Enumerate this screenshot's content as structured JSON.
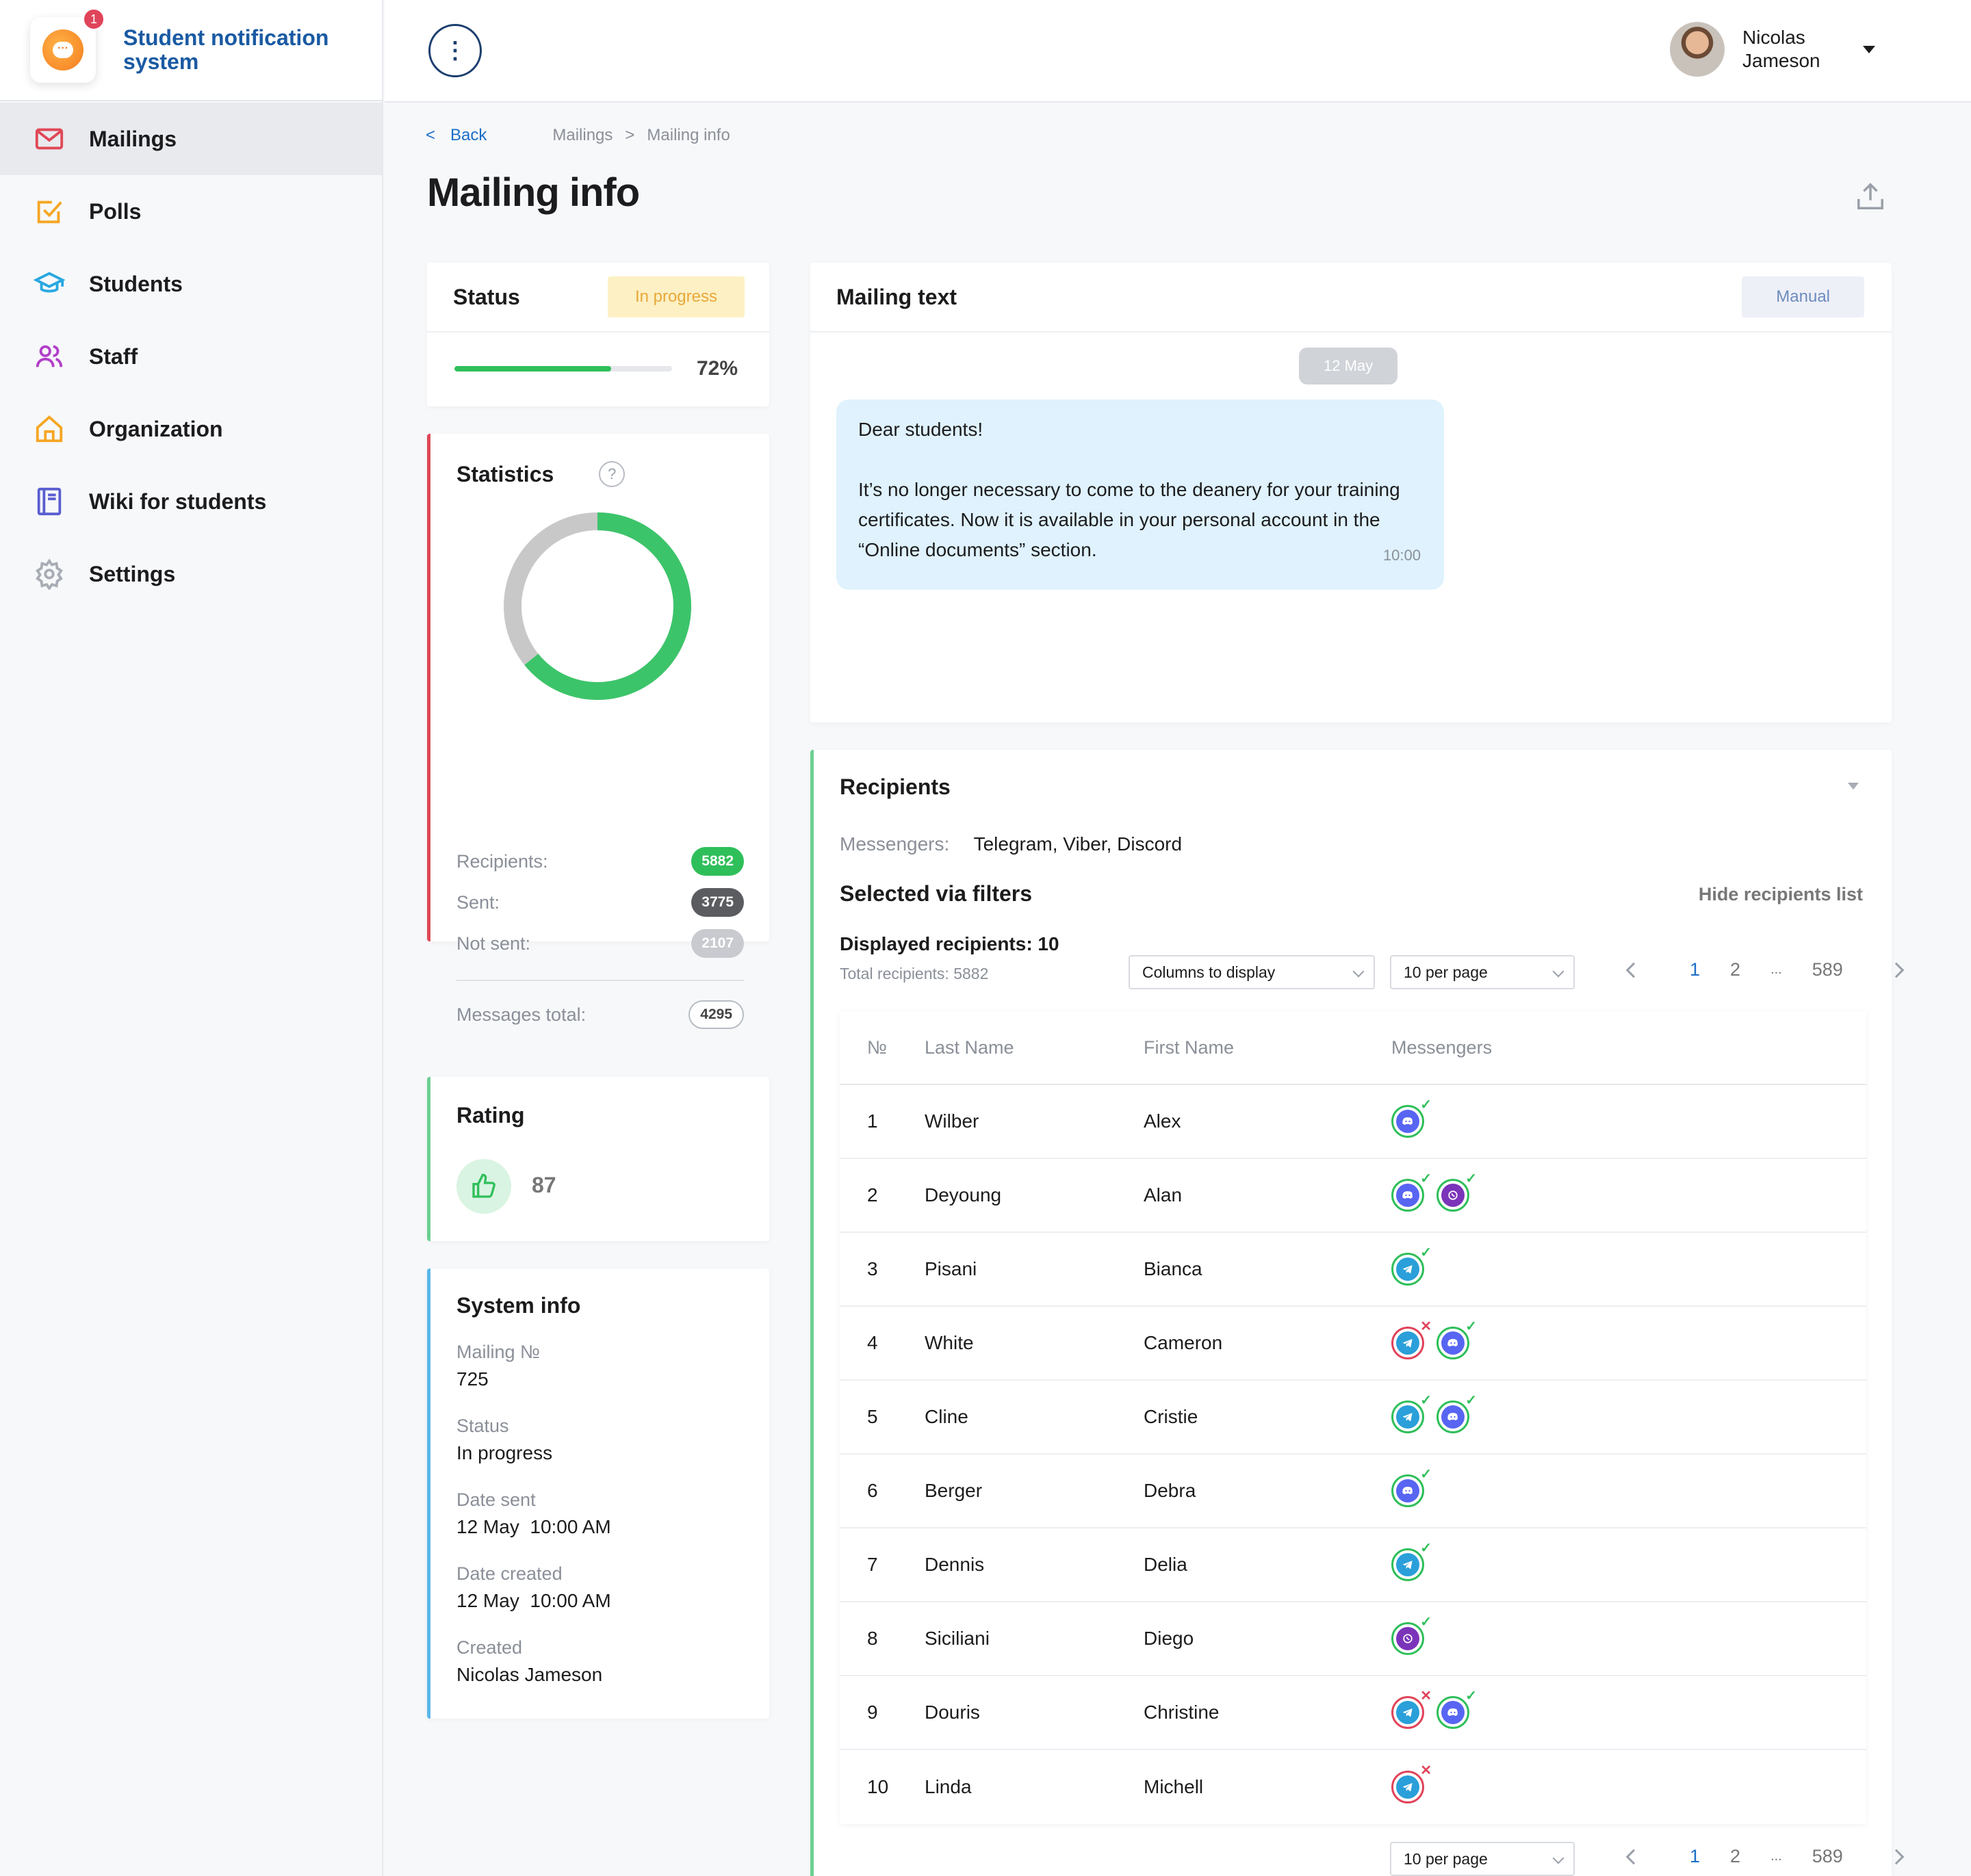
{
  "app": {
    "title": "Student notification system",
    "notification_count": "1"
  },
  "sidebar": {
    "items": [
      {
        "label": "Mailings",
        "icon": "mail-icon",
        "color": "#e04856"
      },
      {
        "label": "Polls",
        "icon": "checkbox-icon",
        "color": "#f5a623"
      },
      {
        "label": "Students",
        "icon": "graduation-cap-icon",
        "color": "#29a8e0"
      },
      {
        "label": "Staff",
        "icon": "users-icon",
        "color": "#b23fc9"
      },
      {
        "label": "Organization",
        "icon": "home-icon",
        "color": "#f5a623"
      },
      {
        "label": "Wiki for students",
        "icon": "book-icon",
        "color": "#5a5ed0"
      },
      {
        "label": "Settings",
        "icon": "gear-icon",
        "color": "#a8acb4"
      }
    ]
  },
  "header": {
    "menu_glyph": "⋮",
    "user_name": "Nicolas Jameson"
  },
  "breadcrumb": {
    "back": "Back",
    "back_glyph": "<",
    "items": [
      "Mailings",
      "Mailing info"
    ],
    "separator": ">"
  },
  "page": {
    "title": "Mailing info"
  },
  "status": {
    "title": "Status",
    "badge": "In progress",
    "progress_percent": 72,
    "progress_label": "72%"
  },
  "statistics": {
    "title": "Statistics",
    "help_glyph": "?",
    "rows": [
      {
        "label": "Recipients:",
        "value": "5882",
        "style": "green"
      },
      {
        "label": "Sent:",
        "value": "3775",
        "style": "dark"
      },
      {
        "label": "Not sent:",
        "value": "2107",
        "style": "grey"
      }
    ],
    "total_label": "Messages total:",
    "total_value": "4295",
    "donut": {
      "sent": 3775,
      "not_sent": 2107,
      "sent_color": "#3cc46a",
      "not_sent_color": "#c8c8c8"
    }
  },
  "rating": {
    "title": "Rating",
    "value": "87"
  },
  "system_info": {
    "title": "System info",
    "items": [
      {
        "label": "Mailing №",
        "value": "725"
      },
      {
        "label": "Status",
        "value": "In progress"
      },
      {
        "label": "Date sent",
        "value": "12 May  10:00 AM"
      },
      {
        "label": "Date created",
        "value": "12 May  10:00 AM"
      },
      {
        "label": "Created",
        "value": "Nicolas Jameson"
      }
    ]
  },
  "mailing_text": {
    "title": "Mailing text",
    "badge": "Manual",
    "date": "12 May",
    "greeting": "Dear students!",
    "body": "It’s no longer necessary to come to the deanery for your training certificates. Now it is available in your personal account in the “Online documents” section.",
    "time": "10:00"
  },
  "recipients": {
    "title": "Recipients",
    "messengers_label": "Messengers:",
    "messengers_value": "Telegram, Viber, Discord",
    "filters_title": "Selected via filters",
    "hide_link": "Hide recipients list",
    "displayed": "Displayed recipients: 10",
    "total": "Total recipients: 5882",
    "columns_select": "Columns to display",
    "per_page": "10 per page",
    "pagination": {
      "pages": [
        "1",
        "2",
        "...",
        "589"
      ],
      "active": "1"
    },
    "columns": [
      "№",
      "Last Name",
      "First Name",
      "Messengers"
    ],
    "rows": [
      {
        "no": "1",
        "last": "Wilber",
        "first": "Alex",
        "messengers": [
          {
            "type": "discord",
            "ok": true
          }
        ]
      },
      {
        "no": "2",
        "last": "Deyoung",
        "first": "Alan",
        "messengers": [
          {
            "type": "discord",
            "ok": true
          },
          {
            "type": "viber",
            "ok": true
          }
        ]
      },
      {
        "no": "3",
        "last": "Pisani",
        "first": "Bianca",
        "messengers": [
          {
            "type": "telegram",
            "ok": true
          }
        ]
      },
      {
        "no": "4",
        "last": "White",
        "first": "Cameron",
        "messengers": [
          {
            "type": "telegram",
            "ok": false
          },
          {
            "type": "discord",
            "ok": true
          }
        ]
      },
      {
        "no": "5",
        "last": "Cline",
        "first": "Cristie",
        "messengers": [
          {
            "type": "telegram",
            "ok": true
          },
          {
            "type": "discord",
            "ok": true
          }
        ]
      },
      {
        "no": "6",
        "last": "Berger",
        "first": "Debra",
        "messengers": [
          {
            "type": "discord",
            "ok": true
          }
        ]
      },
      {
        "no": "7",
        "last": "Dennis",
        "first": "Delia",
        "messengers": [
          {
            "type": "telegram",
            "ok": true
          }
        ]
      },
      {
        "no": "8",
        "last": "Siciliani",
        "first": "Diego",
        "messengers": [
          {
            "type": "viber",
            "ok": true
          }
        ]
      },
      {
        "no": "9",
        "last": "Douris",
        "first": "Christine",
        "messengers": [
          {
            "type": "telegram",
            "ok": false
          },
          {
            "type": "discord",
            "ok": true
          }
        ]
      },
      {
        "no": "10",
        "last": "Linda",
        "first": "Michell",
        "messengers": [
          {
            "type": "telegram",
            "ok": false
          }
        ]
      }
    ]
  }
}
